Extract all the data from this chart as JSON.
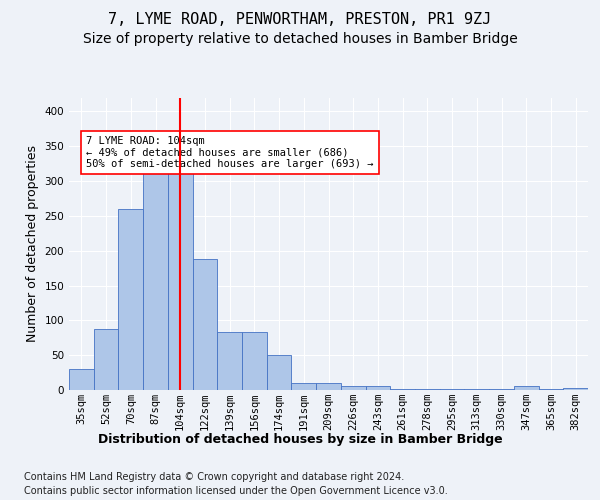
{
  "title": "7, LYME ROAD, PENWORTHAM, PRESTON, PR1 9ZJ",
  "subtitle": "Size of property relative to detached houses in Bamber Bridge",
  "xlabel": "Distribution of detached houses by size in Bamber Bridge",
  "ylabel": "Number of detached properties",
  "categories": [
    "35sqm",
    "52sqm",
    "70sqm",
    "87sqm",
    "104sqm",
    "122sqm",
    "139sqm",
    "156sqm",
    "174sqm",
    "191sqm",
    "209sqm",
    "226sqm",
    "243sqm",
    "261sqm",
    "278sqm",
    "295sqm",
    "313sqm",
    "330sqm",
    "347sqm",
    "365sqm",
    "382sqm"
  ],
  "values": [
    30,
    88,
    260,
    325,
    330,
    188,
    83,
    83,
    50,
    10,
    10,
    6,
    6,
    1,
    2,
    1,
    1,
    1,
    6,
    1,
    3
  ],
  "bar_color": "#aec6e8",
  "bar_edge_color": "#4472c4",
  "highlight_index": 4,
  "annotation_text": "7 LYME ROAD: 104sqm\n← 49% of detached houses are smaller (686)\n50% of semi-detached houses are larger (693) →",
  "annotation_box_color": "white",
  "annotation_box_edge": "red",
  "footer_line1": "Contains HM Land Registry data © Crown copyright and database right 2024.",
  "footer_line2": "Contains public sector information licensed under the Open Government Licence v3.0.",
  "ylim": [
    0,
    420
  ],
  "bg_color": "#eef2f8",
  "plot_bg_color": "#eef2f8",
  "grid_color": "white",
  "title_fontsize": 11,
  "subtitle_fontsize": 10,
  "axis_label_fontsize": 9,
  "tick_fontsize": 7.5,
  "footer_fontsize": 7
}
